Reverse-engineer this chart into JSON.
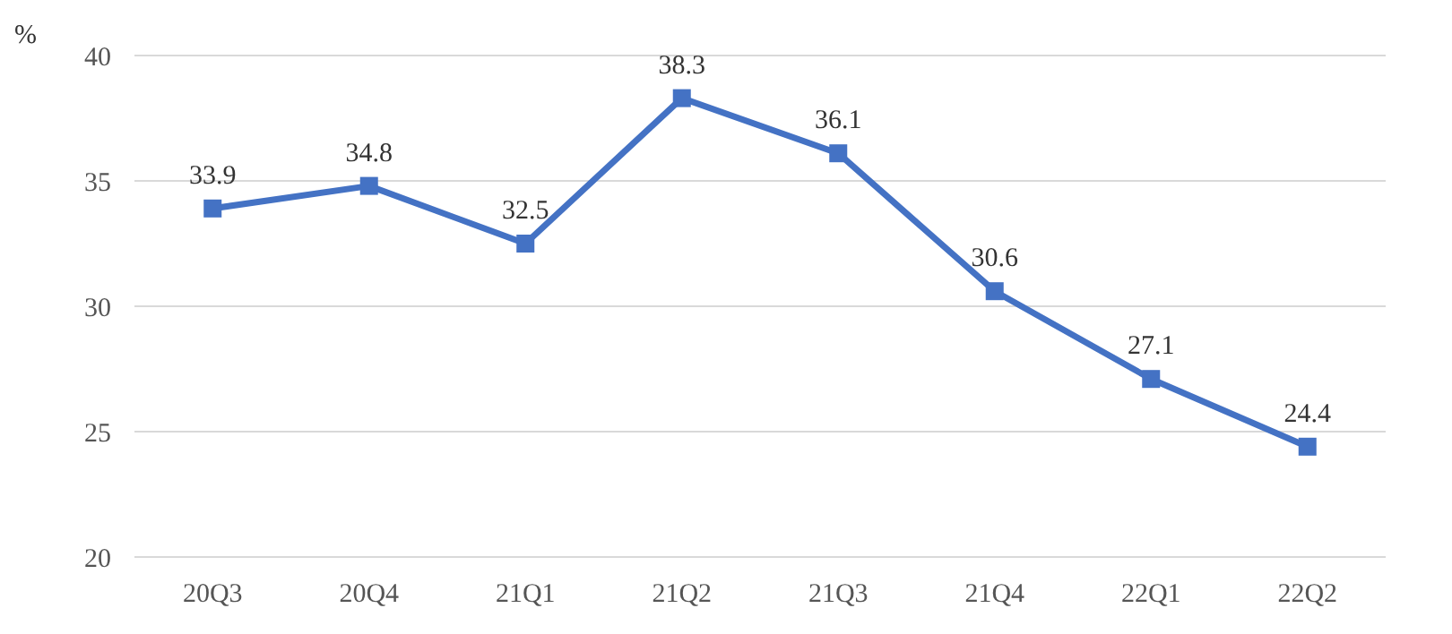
{
  "chart_data": {
    "type": "line",
    "ylabel": "%",
    "categories": [
      "20Q3",
      "20Q4",
      "21Q1",
      "21Q2",
      "21Q3",
      "21Q4",
      "22Q1",
      "22Q2"
    ],
    "series": [
      {
        "color": "#4472c4",
        "values": [
          33.9,
          34.8,
          32.5,
          38.3,
          36.1,
          30.6,
          27.1,
          24.4
        ]
      }
    ],
    "ylim": [
      20,
      40
    ],
    "yticks": [
      20,
      25,
      30,
      35,
      40
    ],
    "grid": "y",
    "marker": "square",
    "line_style": "solid",
    "data_labels": true
  }
}
